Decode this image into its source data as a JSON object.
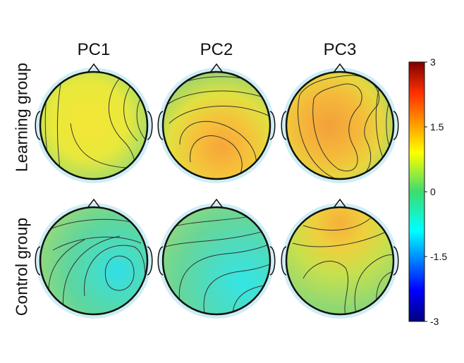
{
  "columns": [
    "PC1",
    "PC2",
    "PC3"
  ],
  "rows": [
    "Learning group",
    "Control group"
  ],
  "colorbar": {
    "ticks": [
      "3",
      "1.5",
      "0",
      "-1.5",
      "-3"
    ],
    "range": [
      -3,
      3
    ],
    "colormap": "jet"
  },
  "maps": [
    {
      "row": "Learning group",
      "column": "PC1",
      "dominant_level": 0.8
    },
    {
      "row": "Learning group",
      "column": "PC2",
      "dominant_level": 1.2
    },
    {
      "row": "Learning group",
      "column": "PC3",
      "dominant_level": 1.3
    },
    {
      "row": "Control group",
      "column": "PC1",
      "dominant_level": -0.3
    },
    {
      "row": "Control group",
      "column": "PC2",
      "dominant_level": -0.2
    },
    {
      "row": "Control group",
      "column": "PC3",
      "dominant_level": 0.6
    }
  ]
}
